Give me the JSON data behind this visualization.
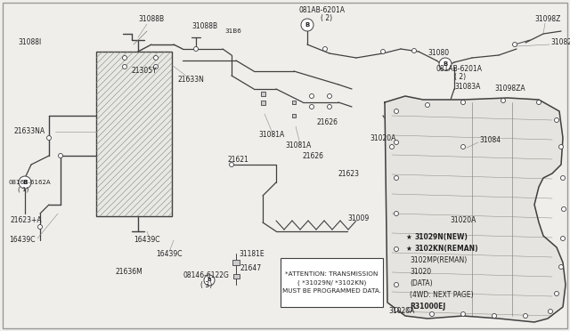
{
  "bg_color": "#f0eeeb",
  "line_color": "#404040",
  "text_color": "#222222",
  "attention_text": "*ATTENTION: TRANSMISSION\n( *31029N/ *3102KN)\nMUST BE PROGRAMMED DATA.",
  "legend_lines": [
    "* 31029N(NEW)",
    "* 3102KN(REMAN)",
    "3102MP(REMAN)",
    "31020",
    "(DATA)",
    "(4WD: NEXT PAGE)",
    "R31000EJ"
  ],
  "legend_star": [
    true,
    true,
    false,
    false,
    false,
    false,
    false
  ]
}
